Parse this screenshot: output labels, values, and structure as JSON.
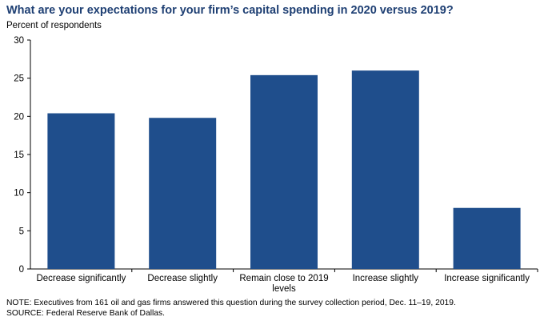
{
  "chart_data": {
    "type": "bar",
    "title": "What are your expectations for your firm’s capital spending in 2020 versus 2019?",
    "ylabel": "Percent of respondents",
    "xlabel": "",
    "ylim": [
      0,
      30
    ],
    "yticks": [
      0,
      5,
      10,
      15,
      20,
      25,
      30
    ],
    "grid": false,
    "categories": [
      [
        "Decrease significantly"
      ],
      [
        "Decrease slightly"
      ],
      [
        "Remain close to 2019",
        "levels"
      ],
      [
        "Increase slightly"
      ],
      [
        "Increase significantly"
      ]
    ],
    "values": [
      20.4,
      19.8,
      25.4,
      26.0,
      8.0
    ],
    "bar_color": "#1f4e8c"
  },
  "notes": {
    "note": "NOTE:  Executives from 161 oil and gas firms answered this question during the survey collection period, Dec. 11–19, 2019.",
    "source": "SOURCE:  Federal Reserve  Bank of Dallas."
  }
}
